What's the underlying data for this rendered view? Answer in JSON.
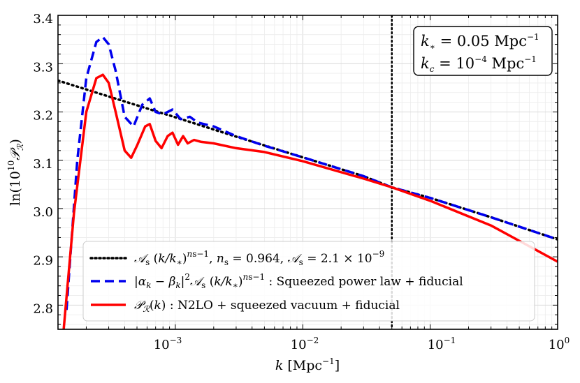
{
  "chart_data": {
    "type": "line",
    "xscale": "log",
    "xlim": [
      0.00012,
      1.0
    ],
    "ylim": [
      2.75,
      3.4
    ],
    "x_ticks": [
      "10^-3",
      "10^-2",
      "10^-1",
      "10^0"
    ],
    "y_ticks": [
      "2.8",
      "2.9",
      "3.0",
      "3.1",
      "3.2",
      "3.3",
      "3.4"
    ],
    "xlabel": "k [Mpc^-1]",
    "ylabel": "ln(10^10 P_R)",
    "grid": true,
    "legend_position": "lower-center",
    "annotation": {
      "line1": "k* = 0.05 Mpc^-1",
      "line2": "kc = 10^-4 Mpc^-1"
    },
    "vline": {
      "x": 0.05,
      "style": "dotted",
      "color": "#000000"
    },
    "series": [
      {
        "name": "A_s (k/k*)^(n_s-1), n_s = 0.964, A_s = 2.1 × 10^-9",
        "color": "#000000",
        "style": "dotted",
        "x": [
          0.00012,
          0.0003,
          0.001,
          0.003,
          0.01,
          0.03,
          0.05,
          0.1,
          0.3,
          1.0
        ],
        "y": [
          3.265,
          3.232,
          3.189,
          3.149,
          3.106,
          3.067,
          3.044,
          3.022,
          2.982,
          2.936
        ]
      },
      {
        "name": "|α_k − β_k|^2 A_s (k/k*)^(n_s-1) : Squeezed power law + fiducial",
        "color": "#0000ee",
        "style": "dashed",
        "x": [
          0.00014,
          0.00017,
          0.0002,
          0.00024,
          0.00027,
          0.0003,
          0.00034,
          0.0004,
          0.00047,
          0.00055,
          0.00063,
          0.0007,
          0.0008,
          0.00095,
          0.0011,
          0.0013,
          0.0015,
          0.002,
          0.003,
          0.005,
          0.01,
          0.03,
          0.05,
          0.1,
          0.3,
          1.0
        ],
        "y": [
          2.79,
          3.1,
          3.27,
          3.345,
          3.355,
          3.34,
          3.285,
          3.19,
          3.17,
          3.215,
          3.228,
          3.2,
          3.195,
          3.205,
          3.185,
          3.19,
          3.178,
          3.17,
          3.15,
          3.13,
          3.106,
          3.067,
          3.044,
          3.022,
          2.982,
          2.936
        ]
      },
      {
        "name": "P_R(k) : N2LO + squeezed vacuum + fiducial",
        "color": "#ff0000",
        "style": "solid",
        "x": [
          0.00013,
          0.00016,
          0.0002,
          0.00024,
          0.00027,
          0.0003,
          0.00034,
          0.0004,
          0.00045,
          0.0005,
          0.00058,
          0.00063,
          0.0007,
          0.00078,
          0.00087,
          0.00095,
          0.00105,
          0.00115,
          0.00125,
          0.0014,
          0.0016,
          0.002,
          0.003,
          0.005,
          0.01,
          0.03,
          0.05,
          0.1,
          0.3,
          1.0
        ],
        "y": [
          2.72,
          2.99,
          3.2,
          3.27,
          3.277,
          3.26,
          3.2,
          3.12,
          3.105,
          3.13,
          3.17,
          3.175,
          3.14,
          3.125,
          3.15,
          3.157,
          3.132,
          3.15,
          3.135,
          3.142,
          3.138,
          3.135,
          3.125,
          3.117,
          3.098,
          3.062,
          3.044,
          3.016,
          2.965,
          2.89
        ]
      }
    ]
  }
}
